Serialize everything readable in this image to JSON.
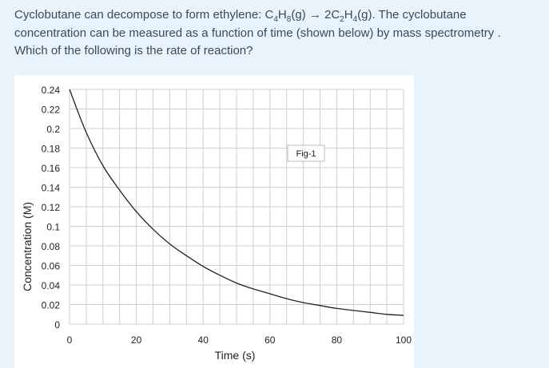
{
  "question": {
    "line1": {
      "prefix": "Cyclobutane can decompose to form ethylene: C",
      "s1": "4",
      "mid1": "H",
      "s2": "8",
      "mid2": "(g) → 2C",
      "s3": "2",
      "mid3": "H",
      "s4": "4",
      "suffix": "(g). The cyclobutane"
    },
    "line2": "concentration can be measured as a function of time (shown below) by mass spectrometry .",
    "line3": "Which of the following is the rate of reaction?"
  },
  "chart_data": {
    "type": "line",
    "xlabel": "Time (s)",
    "ylabel": "Concentration (M)",
    "annotation": "Fig-1",
    "xlim": [
      0,
      100
    ],
    "ylim": [
      0,
      0.24
    ],
    "x_ticks": [
      "0",
      "20",
      "40",
      "60",
      "80",
      "100"
    ],
    "y_ticks": [
      "0",
      "0.02",
      "0.04",
      "0.06",
      "0.08",
      "0.1",
      "0.12",
      "0.14",
      "0.16",
      "0.18",
      "0.2",
      "0.22",
      "0.24"
    ],
    "grid": true,
    "series": [
      {
        "x": [
          0,
          5,
          10,
          15,
          20,
          25,
          30,
          35,
          40,
          45,
          50,
          55,
          60,
          65,
          70,
          75,
          80,
          85,
          90,
          95,
          100
        ],
        "y": [
          0.24,
          0.196,
          0.162,
          0.137,
          0.115,
          0.097,
          0.082,
          0.07,
          0.059,
          0.05,
          0.042,
          0.036,
          0.031,
          0.026,
          0.022,
          0.019,
          0.016,
          0.014,
          0.012,
          0.01,
          0.009
        ]
      }
    ]
  },
  "colors": {
    "text": "#3a4a58",
    "page_background": "#e9f3fb",
    "grid": "#cfcfcf",
    "curve": "#222222"
  }
}
